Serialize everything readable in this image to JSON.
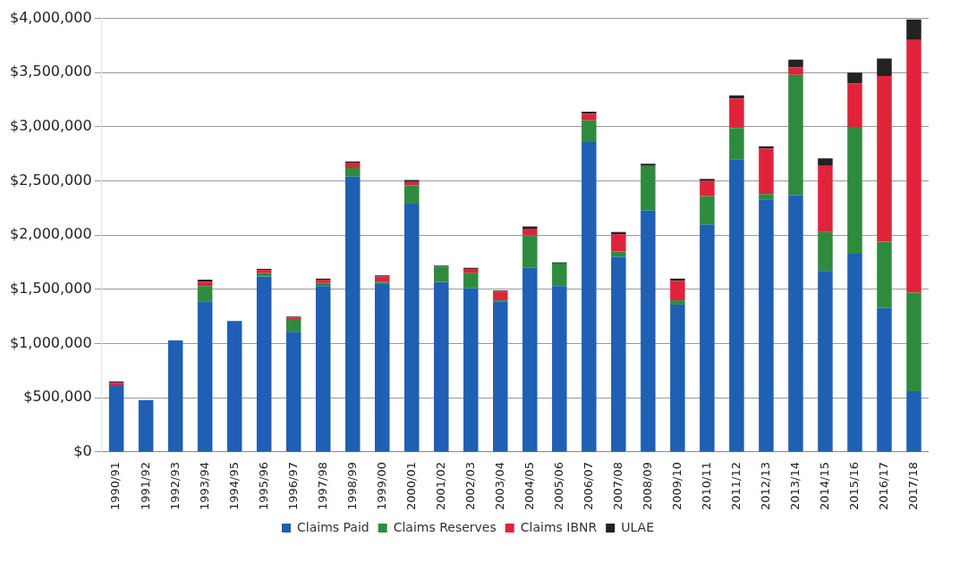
{
  "chart_data": {
    "type": "bar",
    "stacked": true,
    "categories": [
      "1990/91",
      "1991/92",
      "1992/93",
      "1993/94",
      "1994/95",
      "1995/96",
      "1996/97",
      "1997/98",
      "1998/99",
      "1999/00",
      "2000/01",
      "2001/02",
      "2002/03",
      "2003/04",
      "2004/05",
      "2005/06",
      "2006/07",
      "2007/08",
      "2008/09",
      "2009/10",
      "2010/11",
      "2011/12",
      "2012/13",
      "2013/14",
      "2014/15",
      "2015/16",
      "2016/17",
      "2017/18"
    ],
    "series": [
      {
        "name": "Claims Paid",
        "color": "#1f5fb4",
        "values": [
          610000,
          480000,
          1030000,
          1390000,
          1210000,
          1620000,
          1110000,
          1530000,
          2540000,
          1550000,
          2290000,
          1570000,
          1510000,
          1390000,
          1700000,
          1530000,
          2860000,
          1800000,
          2230000,
          1360000,
          2100000,
          2700000,
          2330000,
          2370000,
          1670000,
          1830000,
          1330000,
          560000
        ]
      },
      {
        "name": "Claims Reserves",
        "color": "#2e8b3e",
        "values": [
          0,
          0,
          0,
          140000,
          0,
          30000,
          110000,
          30000,
          80000,
          20000,
          170000,
          140000,
          140000,
          10000,
          300000,
          210000,
          200000,
          50000,
          410000,
          40000,
          260000,
          290000,
          50000,
          1110000,
          360000,
          1170000,
          610000,
          910000
        ]
      },
      {
        "name": "Claims IBNR",
        "color": "#e0233a",
        "values": [
          30000,
          0,
          0,
          40000,
          0,
          30000,
          20000,
          30000,
          50000,
          50000,
          30000,
          0,
          40000,
          80000,
          60000,
          0,
          60000,
          160000,
          0,
          180000,
          140000,
          270000,
          420000,
          70000,
          610000,
          400000,
          1530000,
          2330000
        ]
      },
      {
        "name": "ULAE",
        "color": "#222222",
        "values": [
          10000,
          0,
          0,
          20000,
          0,
          10000,
          10000,
          10000,
          10000,
          10000,
          20000,
          10000,
          10000,
          10000,
          20000,
          10000,
          20000,
          20000,
          20000,
          20000,
          20000,
          30000,
          20000,
          70000,
          70000,
          100000,
          160000,
          190000
        ]
      }
    ],
    "ylim": [
      0,
      4000000
    ],
    "yticks": [
      {
        "value": 0,
        "label": "$0"
      },
      {
        "value": 500000,
        "label": "$500,000"
      },
      {
        "value": 1000000,
        "label": "$1,000,000"
      },
      {
        "value": 1500000,
        "label": "$1,500,000"
      },
      {
        "value": 2000000,
        "label": "$2,000,000"
      },
      {
        "value": 2500000,
        "label": "$2,500,000"
      },
      {
        "value": 3000000,
        "label": "$3,000,000"
      },
      {
        "value": 3500000,
        "label": "$3,500,000"
      },
      {
        "value": 4000000,
        "label": "$4,000,000"
      }
    ],
    "grid": "y",
    "legend": "bottom"
  }
}
